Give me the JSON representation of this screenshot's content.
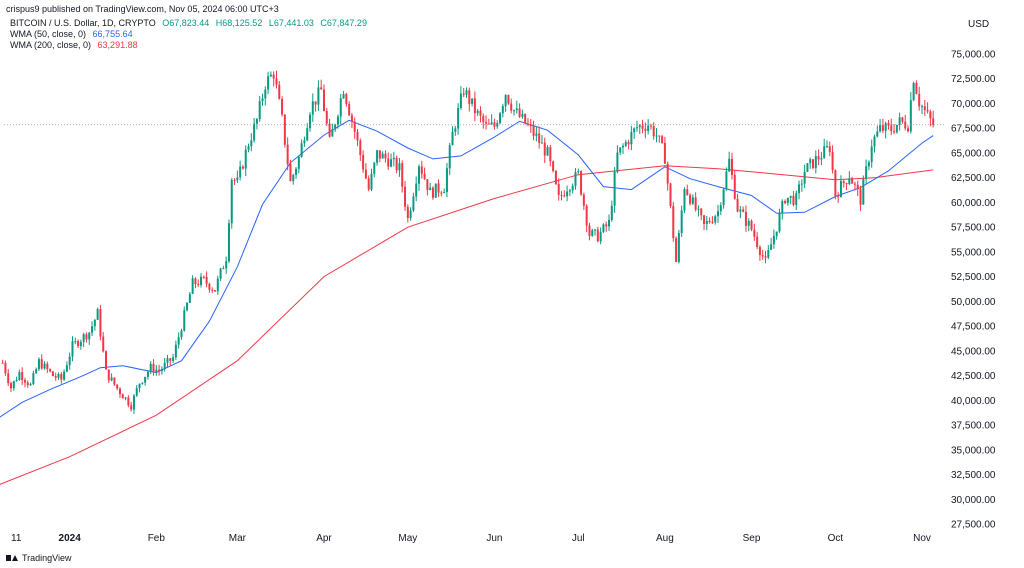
{
  "header": {
    "published": "crispus9 published on TradingView.com, Nov 05, 2024 06:00 UTC+3"
  },
  "legend": {
    "symbol": "BITCOIN / U.S. Dollar, 1D, CRYPTO",
    "ohlc": {
      "o": "O67,823.44",
      "h": "H68,125.52",
      "l": "L67,441.03",
      "c": "C67,847.29"
    },
    "wma50_label": "WMA (50, close, 0)",
    "wma50_value": "66,755.64",
    "wma200_label": "WMA (200, close, 0)",
    "wma200_value": "63,291.88"
  },
  "footer": {
    "brand": "TradingView"
  },
  "colors": {
    "up": "#089981",
    "down": "#f23645",
    "wma50": "#2962ff",
    "wma200": "#f23645",
    "grid": "#f0f3fa",
    "axis_text": "#131722"
  },
  "chart_data": {
    "type": "candlestick",
    "title": "BITCOIN / U.S. Dollar, 1D, CRYPTO",
    "currency": "USD",
    "x_ticks": [
      "11",
      "2024",
      "Feb",
      "Mar",
      "Apr",
      "May",
      "Jun",
      "Jul",
      "Aug",
      "Sep",
      "Oct",
      "Nov"
    ],
    "x_tick_dates": [
      "2023-12-11",
      "2024-01-01",
      "2024-02-01",
      "2024-03-01",
      "2024-04-01",
      "2024-05-01",
      "2024-06-01",
      "2024-07-01",
      "2024-08-01",
      "2024-09-01",
      "2024-10-01",
      "2024-11-01"
    ],
    "y_ticks": [
      "75,000.00",
      "72,500.00",
      "70,000.00",
      "67,500.00",
      "65,000.00",
      "62,500.00",
      "60,000.00",
      "57,500.00",
      "55,000.00",
      "52,500.00",
      "50,000.00",
      "47,500.00",
      "45,000.00",
      "42,500.00",
      "40,000.00",
      "37,500.00",
      "35,000.00",
      "32,500.00",
      "30,000.00",
      "27,500.00"
    ],
    "ylim": [
      27500,
      75000
    ],
    "xlim": [
      "2023-12-07",
      "2024-11-05"
    ],
    "grid": false,
    "last_price": 67847.29,
    "price_path": [
      [
        "2023-12-08",
        43800
      ],
      [
        "2023-12-11",
        41300
      ],
      [
        "2023-12-14",
        42800
      ],
      [
        "2023-12-18",
        41500
      ],
      [
        "2023-12-21",
        43900
      ],
      [
        "2023-12-26",
        42500
      ],
      [
        "2023-12-29",
        42100
      ],
      [
        "2024-01-02",
        45500
      ],
      [
        "2024-01-08",
        46900
      ],
      [
        "2024-01-11",
        48800
      ],
      [
        "2024-01-14",
        42800
      ],
      [
        "2024-01-18",
        41200
      ],
      [
        "2024-01-23",
        39500
      ],
      [
        "2024-01-26",
        41800
      ],
      [
        "2024-01-30",
        43300
      ],
      [
        "2024-02-02",
        43000
      ],
      [
        "2024-02-07",
        44300
      ],
      [
        "2024-02-10",
        47500
      ],
      [
        "2024-02-14",
        51800
      ],
      [
        "2024-02-18",
        52100
      ],
      [
        "2024-02-22",
        51200
      ],
      [
        "2024-02-26",
        54500
      ],
      [
        "2024-02-28",
        62500
      ],
      [
        "2024-03-01",
        62000
      ],
      [
        "2024-03-05",
        66000
      ],
      [
        "2024-03-08",
        68300
      ],
      [
        "2024-03-11",
        72000
      ],
      [
        "2024-03-14",
        73100
      ],
      [
        "2024-03-17",
        68300
      ],
      [
        "2024-03-20",
        62000
      ],
      [
        "2024-03-23",
        64500
      ],
      [
        "2024-03-27",
        69500
      ],
      [
        "2024-03-31",
        71300
      ],
      [
        "2024-04-03",
        66000
      ],
      [
        "2024-04-08",
        71600
      ],
      [
        "2024-04-12",
        67200
      ],
      [
        "2024-04-17",
        61300
      ],
      [
        "2024-04-20",
        64900
      ],
      [
        "2024-04-24",
        64300
      ],
      [
        "2024-04-28",
        63400
      ],
      [
        "2024-05-01",
        58300
      ],
      [
        "2024-05-05",
        64000
      ],
      [
        "2024-05-09",
        61000
      ],
      [
        "2024-05-14",
        61600
      ],
      [
        "2024-05-17",
        66900
      ],
      [
        "2024-05-21",
        71400
      ],
      [
        "2024-05-25",
        69300
      ],
      [
        "2024-05-29",
        67600
      ],
      [
        "2024-06-01",
        67700
      ],
      [
        "2024-06-05",
        71100
      ],
      [
        "2024-06-08",
        69300
      ],
      [
        "2024-06-12",
        68000
      ],
      [
        "2024-06-16",
        66600
      ],
      [
        "2024-06-20",
        64900
      ],
      [
        "2024-06-24",
        60300
      ],
      [
        "2024-06-27",
        61600
      ],
      [
        "2024-07-01",
        62800
      ],
      [
        "2024-07-05",
        56800
      ],
      [
        "2024-07-08",
        56600
      ],
      [
        "2024-07-12",
        57900
      ],
      [
        "2024-07-15",
        64800
      ],
      [
        "2024-07-22",
        67600
      ],
      [
        "2024-07-26",
        67900
      ],
      [
        "2024-07-29",
        66800
      ],
      [
        "2024-08-01",
        64600
      ],
      [
        "2024-08-05",
        54000
      ],
      [
        "2024-08-08",
        61700
      ],
      [
        "2024-08-12",
        59300
      ],
      [
        "2024-08-15",
        57600
      ],
      [
        "2024-08-20",
        59100
      ],
      [
        "2024-08-24",
        64200
      ],
      [
        "2024-08-27",
        59400
      ],
      [
        "2024-09-01",
        57300
      ],
      [
        "2024-09-06",
        53900
      ],
      [
        "2024-09-10",
        57600
      ],
      [
        "2024-09-13",
        60500
      ],
      [
        "2024-09-17",
        60300
      ],
      [
        "2024-09-20",
        63200
      ],
      [
        "2024-09-24",
        64300
      ],
      [
        "2024-09-29",
        65600
      ],
      [
        "2024-10-01",
        60800
      ],
      [
        "2024-10-06",
        62800
      ],
      [
        "2024-10-10",
        60300
      ],
      [
        "2024-10-14",
        66000
      ],
      [
        "2024-10-17",
        67400
      ],
      [
        "2024-10-21",
        67400
      ],
      [
        "2024-10-24",
        68100
      ],
      [
        "2024-10-27",
        67900
      ],
      [
        "2024-10-29",
        72700
      ],
      [
        "2024-10-31",
        70200
      ],
      [
        "2024-11-03",
        68700
      ],
      [
        "2024-11-05",
        67847
      ]
    ],
    "series": [
      {
        "name": "WMA (50, close, 0)",
        "color": "#2962ff",
        "points": [
          [
            "2023-12-07",
            38300
          ],
          [
            "2023-12-15",
            39800
          ],
          [
            "2023-12-25",
            41100
          ],
          [
            "2024-01-05",
            42400
          ],
          [
            "2024-01-12",
            43300
          ],
          [
            "2024-01-20",
            43500
          ],
          [
            "2024-02-01",
            42800
          ],
          [
            "2024-02-10",
            44000
          ],
          [
            "2024-02-20",
            48000
          ],
          [
            "2024-03-01",
            53500
          ],
          [
            "2024-03-10",
            59800
          ],
          [
            "2024-03-20",
            64000
          ],
          [
            "2024-04-01",
            66800
          ],
          [
            "2024-04-10",
            68300
          ],
          [
            "2024-04-20",
            67200
          ],
          [
            "2024-05-01",
            65500
          ],
          [
            "2024-05-10",
            64400
          ],
          [
            "2024-05-20",
            64700
          ],
          [
            "2024-06-01",
            66600
          ],
          [
            "2024-06-10",
            68200
          ],
          [
            "2024-06-20",
            67300
          ],
          [
            "2024-07-01",
            64800
          ],
          [
            "2024-07-10",
            61600
          ],
          [
            "2024-07-20",
            61300
          ],
          [
            "2024-08-01",
            63600
          ],
          [
            "2024-08-10",
            62400
          ],
          [
            "2024-08-20",
            61600
          ],
          [
            "2024-09-01",
            60700
          ],
          [
            "2024-09-10",
            58900
          ],
          [
            "2024-09-20",
            59000
          ],
          [
            "2024-10-01",
            60600
          ],
          [
            "2024-10-10",
            61500
          ],
          [
            "2024-10-20",
            63200
          ],
          [
            "2024-11-01",
            66000
          ],
          [
            "2024-11-05",
            66755
          ]
        ]
      },
      {
        "name": "WMA (200, close, 0)",
        "color": "#f23645",
        "points": [
          [
            "2023-12-07",
            31500
          ],
          [
            "2024-01-01",
            34300
          ],
          [
            "2024-02-01",
            38500
          ],
          [
            "2024-03-01",
            44000
          ],
          [
            "2024-04-01",
            52500
          ],
          [
            "2024-05-01",
            57500
          ],
          [
            "2024-06-01",
            60400
          ],
          [
            "2024-07-01",
            62800
          ],
          [
            "2024-08-01",
            63700
          ],
          [
            "2024-08-20",
            63400
          ],
          [
            "2024-09-01",
            63100
          ],
          [
            "2024-10-01",
            62300
          ],
          [
            "2024-10-15",
            62500
          ],
          [
            "2024-11-05",
            63291
          ]
        ]
      }
    ]
  }
}
